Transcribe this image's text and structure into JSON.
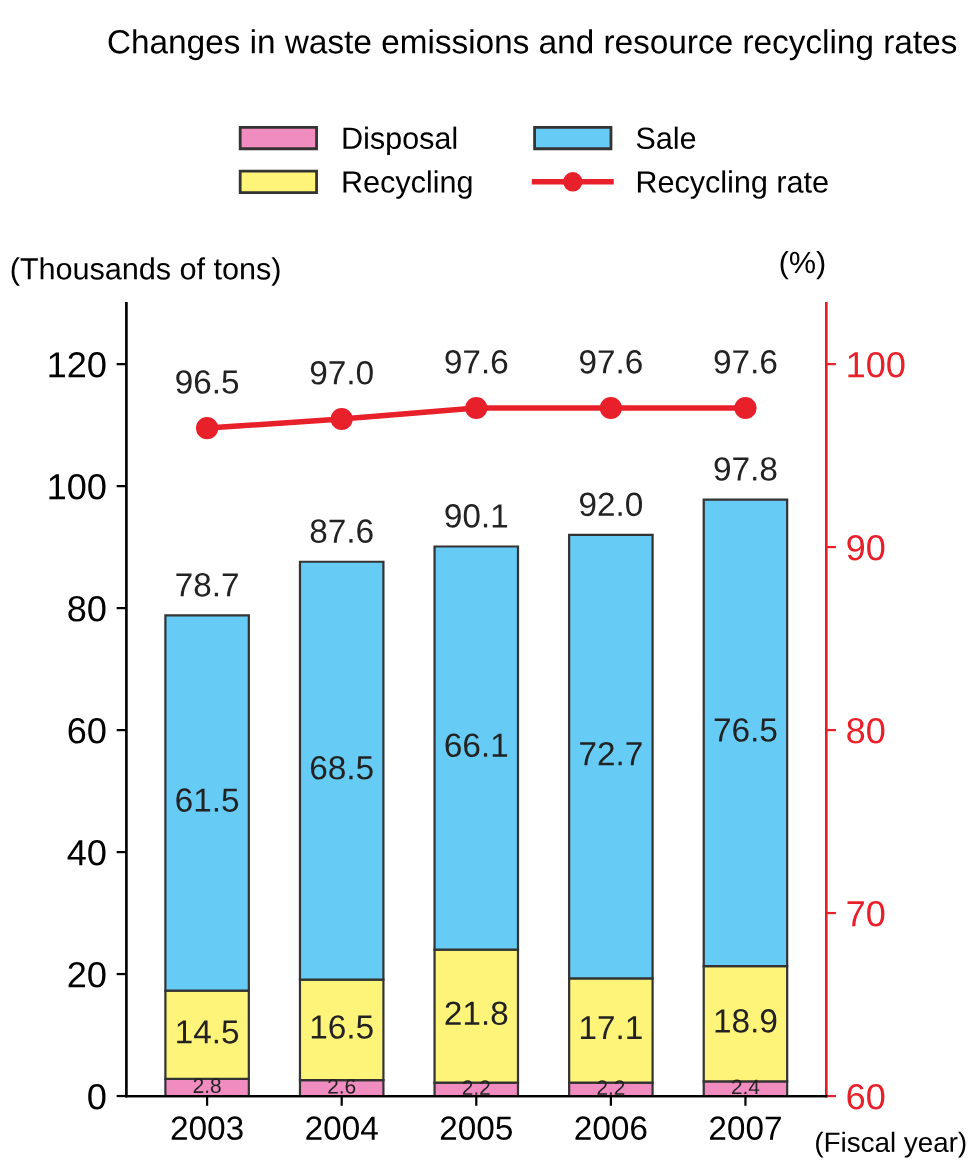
{
  "chart_data": {
    "type": "bar",
    "title": "Changes in waste emissions and resource recycling rates",
    "ylabel": "(Thousands of tons)",
    "y2label": "(%)",
    "xlabel": "(Fiscal year)",
    "categories": [
      "2003",
      "2004",
      "2005",
      "2006",
      "2007"
    ],
    "stacked": true,
    "data_labels": true,
    "legend": "top",
    "grid": false,
    "marker": "circle",
    "line_style": "solid",
    "series": [
      {
        "name": "Disposal",
        "type": "bar",
        "color": "#f08cc0",
        "values": [
          2.8,
          2.6,
          2.2,
          2.2,
          2.4
        ]
      },
      {
        "name": "Recycling",
        "type": "bar",
        "color": "#fff47a",
        "values": [
          14.5,
          16.5,
          21.8,
          17.1,
          18.9
        ]
      },
      {
        "name": "Sale",
        "type": "bar",
        "color": "#66ccf5",
        "values": [
          61.5,
          68.5,
          66.1,
          72.7,
          76.5
        ]
      },
      {
        "name": "Recycling rate",
        "type": "line",
        "axis": "y2",
        "color": "#e8202a",
        "values": [
          96.5,
          97.0,
          97.6,
          97.6,
          97.6
        ],
        "value_labels": [
          "96.5",
          "97.0",
          "97.6",
          "97.6",
          "97.6"
        ]
      }
    ],
    "totals": [
      "78.7",
      "87.6",
      "90.1",
      "92.0",
      "97.8"
    ],
    "ylim": [
      0,
      130
    ],
    "yticks": [
      0,
      20,
      40,
      60,
      80,
      100,
      120
    ],
    "y2lim": [
      60,
      103.33
    ],
    "y2ticks": [
      60,
      70,
      80,
      90,
      100
    ]
  }
}
